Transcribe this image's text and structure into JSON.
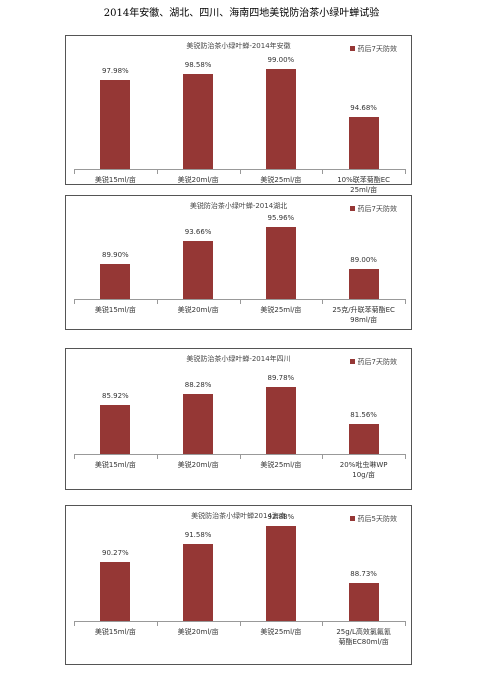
{
  "page_title": "2014年安徽、湖北、四川、海南四地美锐防治茶小绿叶蝉试验",
  "chart_data": [
    {
      "type": "bar",
      "title": "美锐防治茶小绿叶蝉-2014年安徽",
      "categories": [
        "美锐15ml/亩",
        "美锐20ml/亩",
        "美锐25ml/亩",
        "10%联苯菊酯EC\n25ml/亩"
      ],
      "series": [
        {
          "name": "药后7天防效",
          "color": "#953735",
          "values": [
            97.98,
            98.58,
            99.0,
            94.68
          ],
          "value_labels": [
            "97.98%",
            "98.58%",
            "99.00%",
            "94.68%"
          ]
        }
      ],
      "ylim": [
        90,
        100
      ],
      "legend": "top-right"
    },
    {
      "type": "bar",
      "title": "美锐防治茶小绿叶蝉-2014湖北",
      "categories": [
        "美锐15ml/亩",
        "美锐20ml/亩",
        "美锐25ml/亩",
        "25克/升联苯菊酯EC\n98ml/亩"
      ],
      "series": [
        {
          "name": "药后7天防效",
          "color": "#953735",
          "values": [
            89.9,
            93.66,
            95.96,
            89.0
          ],
          "value_labels": [
            "89.90%",
            "93.66%",
            "95.96%",
            "89.00%"
          ]
        }
      ],
      "ylim": [
        84,
        100
      ],
      "legend": "top-right"
    },
    {
      "type": "bar",
      "title": "美锐防治茶小绿叶蝉-2014年四川",
      "categories": [
        "美锐15ml/亩",
        "美锐20ml/亩",
        "美锐25ml/亩",
        "20%吡虫啉WP\n10g/亩"
      ],
      "series": [
        {
          "name": "药后7天防效",
          "color": "#953735",
          "values": [
            85.92,
            88.28,
            89.78,
            81.56
          ],
          "value_labels": [
            "85.92%",
            "88.28%",
            "89.78%",
            "81.56%"
          ]
        }
      ],
      "ylim": [
        75,
        95
      ],
      "legend": "top-right"
    },
    {
      "type": "bar",
      "title": "美锐防治茶小绿叶蝉2014海南",
      "categories": [
        "美锐15ml/亩",
        "美锐20ml/亩",
        "美锐25ml/亩",
        "25g/L高效氯氟氰\n菊酯EC80ml/亩"
      ],
      "series": [
        {
          "name": "药后5天防效",
          "color": "#953735",
          "values": [
            90.27,
            91.58,
            92.88,
            88.73
          ],
          "value_labels": [
            "90.27%",
            "91.58%",
            "92.88%",
            "88.73%"
          ]
        }
      ],
      "ylim": [
        86,
        94
      ],
      "legend": "top-right"
    }
  ]
}
